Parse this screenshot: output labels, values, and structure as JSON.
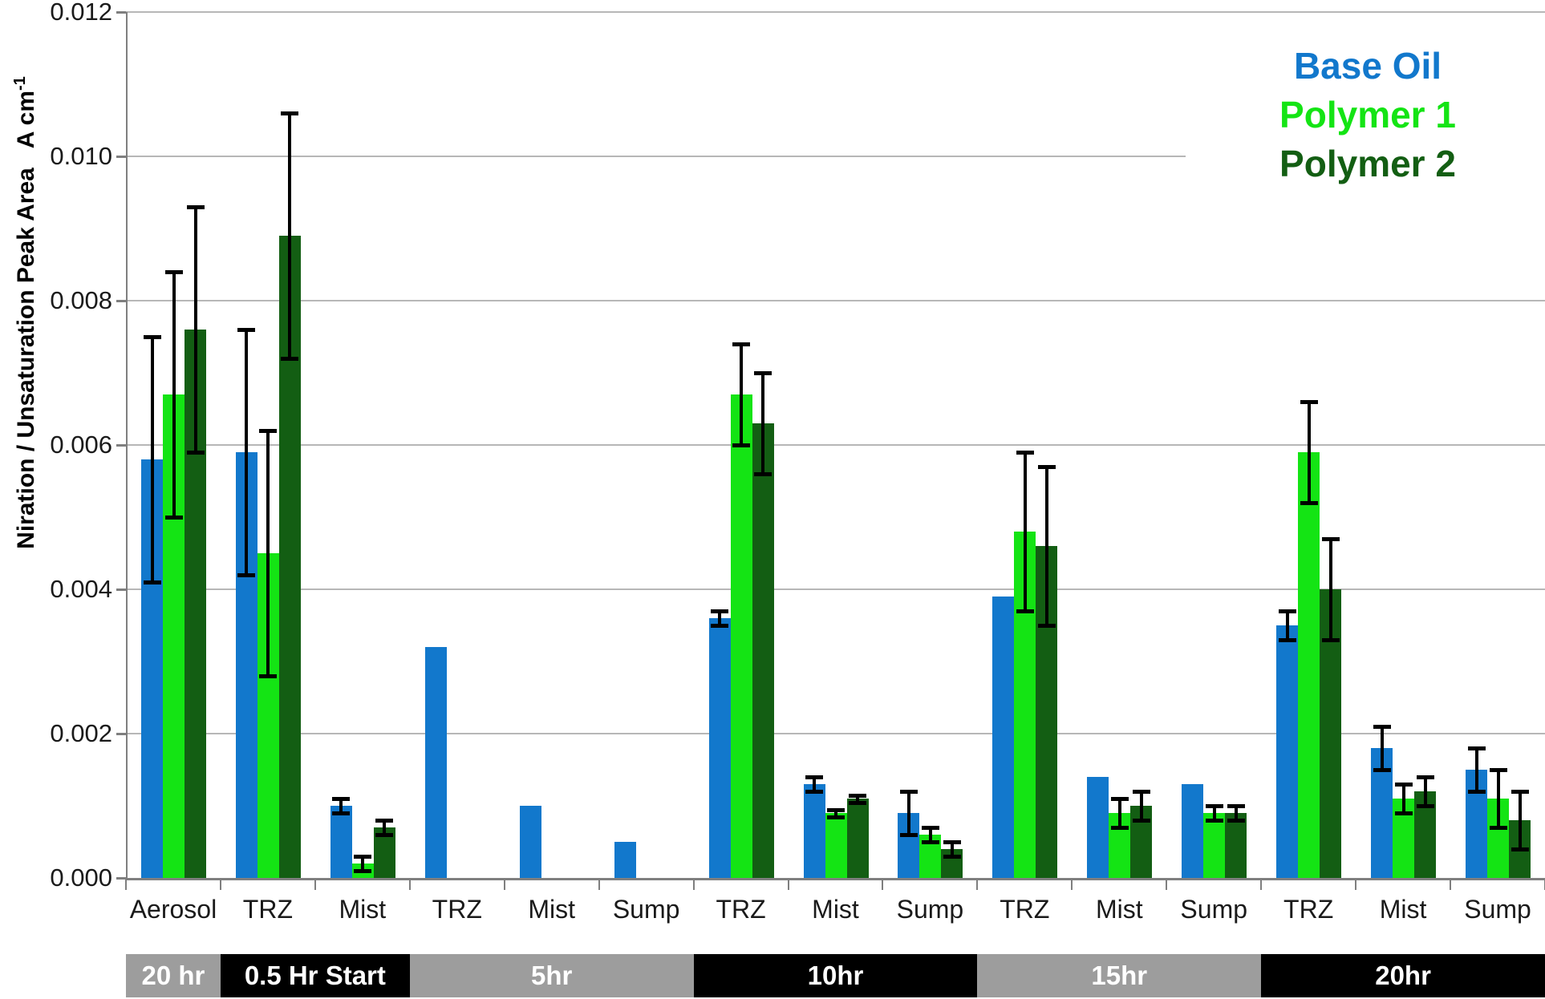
{
  "chart_data": {
    "type": "bar",
    "title": "",
    "ylabel": "Niration / Unsaturation Peak Area",
    "ylabel_unit": "A cm",
    "ylabel_unit_sup": "-1",
    "ylim": [
      0,
      0.012
    ],
    "ytick_step": 0.002,
    "ytick_labels": [
      "0.000",
      "0.002",
      "0.004",
      "0.006",
      "0.008",
      "0.010",
      "0.012"
    ],
    "truncated_gridline_label": "0.010",
    "grid": "horizontal",
    "legend_position": "top-right",
    "series": [
      {
        "name": "Base Oil",
        "color": "#1278CC"
      },
      {
        "name": "Polymer 1",
        "color": "#14E414"
      },
      {
        "name": "Polymer 2",
        "color": "#135E13"
      }
    ],
    "categories": [
      "Aerosol",
      "TRZ",
      "Mist",
      "TRZ",
      "Mist",
      "Sump",
      "TRZ",
      "Mist",
      "Sump",
      "TRZ",
      "Mist",
      "Sump",
      "TRZ",
      "Mist",
      "Sump"
    ],
    "groups": [
      {
        "category": "Aerosol",
        "values": [
          0.0058,
          0.0067,
          0.0076
        ],
        "errors": [
          [
            0.0041,
            0.0075
          ],
          [
            0.005,
            0.0084
          ],
          [
            0.0059,
            0.0093
          ]
        ]
      },
      {
        "category": "TRZ",
        "values": [
          0.0059,
          0.0045,
          0.0089
        ],
        "errors": [
          [
            0.0042,
            0.0076
          ],
          [
            0.0028,
            0.0062
          ],
          [
            0.0072,
            0.0106
          ]
        ]
      },
      {
        "category": "Mist",
        "values": [
          0.001,
          0.0002,
          0.0007
        ],
        "errors": [
          [
            0.0009,
            0.0011
          ],
          [
            0.0001,
            0.0003
          ],
          [
            0.0006,
            0.0008
          ]
        ]
      },
      {
        "category": "TRZ",
        "values": [
          0.0032,
          0,
          0
        ],
        "errors": [
          null,
          null,
          null
        ]
      },
      {
        "category": "Mist",
        "values": [
          0.001,
          0,
          0
        ],
        "errors": [
          null,
          null,
          null
        ]
      },
      {
        "category": "Sump",
        "values": [
          0.0005,
          0,
          0
        ],
        "errors": [
          null,
          null,
          null
        ]
      },
      {
        "category": "TRZ",
        "values": [
          0.0036,
          0.0067,
          0.0063
        ],
        "errors": [
          [
            0.0035,
            0.0037
          ],
          [
            0.006,
            0.0074
          ],
          [
            0.0056,
            0.007
          ]
        ]
      },
      {
        "category": "Mist",
        "values": [
          0.0013,
          0.0009,
          0.0011
        ],
        "errors": [
          [
            0.0012,
            0.0014
          ],
          [
            0.00085,
            0.00095
          ],
          [
            0.00105,
            0.00115
          ]
        ]
      },
      {
        "category": "Sump",
        "values": [
          0.0009,
          0.0006,
          0.0004
        ],
        "errors": [
          [
            0.0006,
            0.0012
          ],
          [
            0.0005,
            0.0007
          ],
          [
            0.0003,
            0.0005
          ]
        ]
      },
      {
        "category": "TRZ",
        "values": [
          0.0039,
          0.0048,
          0.0046
        ],
        "errors": [
          null,
          [
            0.0037,
            0.0059
          ],
          [
            0.0035,
            0.0057
          ]
        ]
      },
      {
        "category": "Mist",
        "values": [
          0.0014,
          0.0009,
          0.001
        ],
        "errors": [
          null,
          [
            0.0007,
            0.0011
          ],
          [
            0.0008,
            0.0012
          ]
        ]
      },
      {
        "category": "Sump",
        "values": [
          0.0013,
          0.0009,
          0.0009
        ],
        "errors": [
          null,
          [
            0.0008,
            0.001
          ],
          [
            0.0008,
            0.001
          ]
        ]
      },
      {
        "category": "TRZ",
        "values": [
          0.0035,
          0.0059,
          0.004
        ],
        "errors": [
          [
            0.0033,
            0.0037
          ],
          [
            0.0052,
            0.0066
          ],
          [
            0.0033,
            0.0047
          ]
        ]
      },
      {
        "category": "Mist",
        "values": [
          0.0018,
          0.0011,
          0.0012
        ],
        "errors": [
          [
            0.0015,
            0.0021
          ],
          [
            0.0009,
            0.0013
          ],
          [
            0.001,
            0.0014
          ]
        ]
      },
      {
        "category": "Sump",
        "values": [
          0.0015,
          0.0011,
          0.0008
        ],
        "errors": [
          [
            0.0012,
            0.0018
          ],
          [
            0.0007,
            0.0015
          ],
          [
            0.0004,
            0.0012
          ]
        ]
      }
    ],
    "bands": [
      {
        "label": "20 hr",
        "groups": 1,
        "color": "#9D9D9D"
      },
      {
        "label": "0.5 Hr Start",
        "groups": 2,
        "color": "#000000"
      },
      {
        "label": "5hr",
        "groups": 3,
        "color": "#9D9D9D"
      },
      {
        "label": "10hr",
        "groups": 3,
        "color": "#000000"
      },
      {
        "label": "15hr",
        "groups": 3,
        "color": "#9D9D9D"
      },
      {
        "label": "20hr",
        "groups": 3,
        "color": "#000000"
      }
    ]
  }
}
